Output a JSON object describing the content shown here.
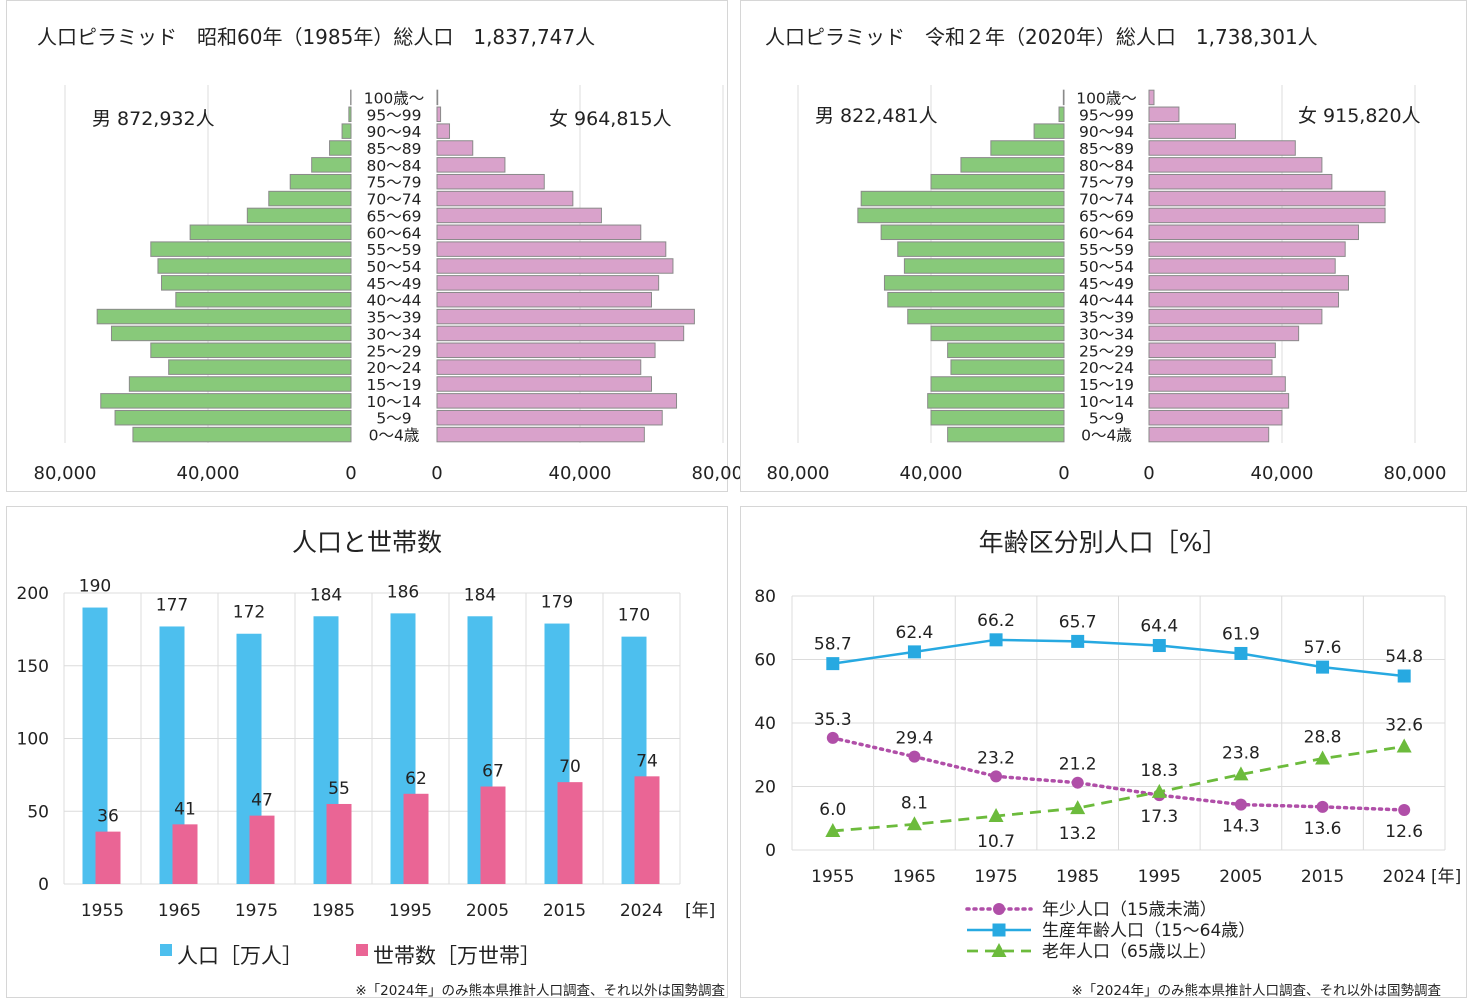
{
  "chart_data": [
    {
      "type": "bar",
      "subtype": "population-pyramid",
      "title": "人口ピラミッド　昭和60年（1985年）総人口　1,837,747人",
      "male_label": "男 872,932人",
      "female_label": "女 964,815人",
      "categories": [
        "0～4歳",
        "5～9",
        "10～14",
        "15～19",
        "20～24",
        "25～29",
        "30～34",
        "35～39",
        "40～44",
        "45～49",
        "50～54",
        "55～59",
        "60～64",
        "65～69",
        "70～74",
        "75～79",
        "80～84",
        "85～89",
        "90～94",
        "95～99",
        "100歳～"
      ],
      "series": [
        {
          "name": "男",
          "values": [
            61000,
            66000,
            70000,
            62000,
            51000,
            56000,
            67000,
            71000,
            49000,
            53000,
            54000,
            56000,
            45000,
            29000,
            23000,
            17000,
            11000,
            6000,
            2500,
            600,
            100
          ]
        },
        {
          "name": "女",
          "values": [
            58000,
            63000,
            67000,
            60000,
            57000,
            61000,
            69000,
            72000,
            60000,
            62000,
            66000,
            64000,
            57000,
            46000,
            38000,
            30000,
            19000,
            10000,
            3500,
            1000,
            200
          ]
        }
      ],
      "xlim": [
        0,
        80000
      ],
      "x_ticks_left": [
        "80,000",
        "40,000",
        "0"
      ],
      "x_ticks_right": [
        "0",
        "40,000",
        "80,000"
      ],
      "grid": true
    },
    {
      "type": "bar",
      "subtype": "population-pyramid",
      "title": "人口ピラミッド　令和２年（2020年）総人口　1,738,301人",
      "male_label": "男 822,481人",
      "female_label": "女 915,820人",
      "categories": [
        "0～4歳",
        "5～9",
        "10～14",
        "15～19",
        "20～24",
        "25～29",
        "30～34",
        "35～39",
        "40～44",
        "45～49",
        "50～54",
        "55～59",
        "60～64",
        "65～69",
        "70～74",
        "75～79",
        "80～84",
        "85～89",
        "90～94",
        "95～99",
        "100歳～"
      ],
      "series": [
        {
          "name": "男",
          "values": [
            35000,
            40000,
            41000,
            40000,
            34000,
            35000,
            40000,
            47000,
            53000,
            54000,
            48000,
            50000,
            55000,
            62000,
            61000,
            40000,
            31000,
            22000,
            9000,
            1500,
            200
          ]
        },
        {
          "name": "女",
          "values": [
            36000,
            40000,
            42000,
            41000,
            37000,
            38000,
            45000,
            52000,
            57000,
            60000,
            56000,
            59000,
            63000,
            71000,
            71000,
            55000,
            52000,
            44000,
            26000,
            9000,
            1500
          ]
        }
      ],
      "xlim": [
        0,
        80000
      ],
      "x_ticks_left": [
        "80,000",
        "40,000",
        "0"
      ],
      "x_ticks_right": [
        "0",
        "40,000",
        "80,000"
      ],
      "grid": true
    },
    {
      "type": "bar",
      "title": "人口と世帯数",
      "categories": [
        "1955",
        "1965",
        "1975",
        "1985",
        "1995",
        "2005",
        "2015",
        "2024"
      ],
      "x_unit": "[年]",
      "series": [
        {
          "name": "人口［万人］",
          "color": "#4dbfee",
          "values": [
            190,
            177,
            172,
            184,
            186,
            184,
            179,
            170
          ]
        },
        {
          "name": "世帯数［万世帯］",
          "color": "#ea6595",
          "values": [
            36,
            41,
            47,
            55,
            62,
            67,
            70,
            74
          ]
        }
      ],
      "ylim": [
        0,
        200
      ],
      "y_ticks": [
        0,
        50,
        100,
        150,
        200
      ],
      "legend": "bottom",
      "note": "※「2024年」のみ熊本県推計人口調査、それ以外は国勢調査"
    },
    {
      "type": "line",
      "title": "年齢区分別人口［%］",
      "categories": [
        "1955",
        "1965",
        "1975",
        "1985",
        "1995",
        "2005",
        "2015",
        "2024"
      ],
      "x_unit": "[年]",
      "series": [
        {
          "name": "年少人口（15歳未満）",
          "color": "#b04fa8",
          "values": [
            35.3,
            29.4,
            23.2,
            21.2,
            17.3,
            14.3,
            13.6,
            12.6
          ]
        },
        {
          "name": "生産年齢人口（15～64歳）",
          "color": "#27a9e1",
          "values": [
            58.7,
            62.4,
            66.2,
            65.7,
            64.4,
            61.9,
            57.6,
            54.8
          ]
        },
        {
          "name": "老年人口（65歳以上）",
          "color": "#6cbb3c",
          "values": [
            6.0,
            8.1,
            10.7,
            13.2,
            18.3,
            23.8,
            28.8,
            32.6
          ]
        }
      ],
      "ylim": [
        0,
        80
      ],
      "y_ticks": [
        0,
        20,
        40,
        60,
        80
      ],
      "legend": "bottom",
      "note": "※「2024年」のみ熊本県推計人口調査、それ以外は国勢調査"
    }
  ]
}
